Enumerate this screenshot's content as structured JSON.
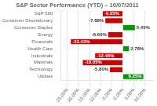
{
  "chart_data": {
    "type": "bar",
    "orientation": "horizontal",
    "title": "S&P Sector Performance (YTD) – 10/07/2011",
    "categories": [
      "S&P 500",
      "Consumer Discretionary",
      "Consumer Staples",
      "Energy",
      "Financials",
      "Health Care",
      "Industrials",
      "Materials",
      "Technology",
      "Utilities"
    ],
    "values": [
      -9.05,
      -7.88,
      5.45,
      -6.6,
      -23.43,
      2.78,
      -12.48,
      -18.05,
      -5.8,
      9.25
    ],
    "value_labels": [
      "-9.05%",
      "-7.88%",
      "5.45%",
      "-6.60%",
      "-23.43%",
      "2.78%",
      "-12.48%",
      "-18.05%",
      "-5.80%",
      "9.25%"
    ],
    "colors": [
      "#cc0000",
      "#cc0000",
      "#009900",
      "#cc0000",
      "#cc0000",
      "#009900",
      "#cc0000",
      "#cc0000",
      "#cc0000",
      "#009900"
    ],
    "xlim": [
      -28,
      14
    ],
    "xticks": [
      {
        "value": -25,
        "label": "-25.00%"
      },
      {
        "value": -20,
        "label": "-20.00%"
      },
      {
        "value": -15,
        "label": "-15.00%"
      },
      {
        "value": -10,
        "label": "-10.00%"
      },
      {
        "value": -5,
        "label": "-5.00%"
      },
      {
        "value": 0,
        "label": "0.00%"
      },
      {
        "value": 5,
        "label": "5.00%"
      },
      {
        "value": 10,
        "label": "10.00%"
      }
    ],
    "grid": true,
    "data_labels": true
  }
}
